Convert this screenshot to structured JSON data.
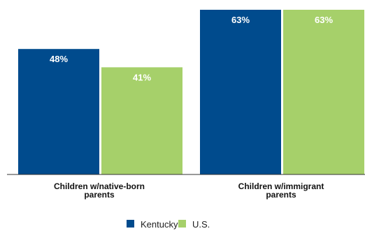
{
  "chart_data": {
    "type": "bar",
    "categories": [
      [
        "Children w/native-born",
        "parents"
      ],
      [
        "Children w/immigrant",
        "parents"
      ]
    ],
    "series": [
      {
        "name": "Kentucky",
        "color": "#004b8d",
        "values": [
          48,
          63
        ],
        "labels": [
          "48%",
          "63%"
        ]
      },
      {
        "name": "U.S.",
        "color": "#a6d06a",
        "values": [
          41,
          63
        ],
        "labels": [
          "41%",
          "63%"
        ]
      }
    ],
    "ylim": [
      0,
      63
    ],
    "legend": "bottom-center",
    "grid": false
  }
}
